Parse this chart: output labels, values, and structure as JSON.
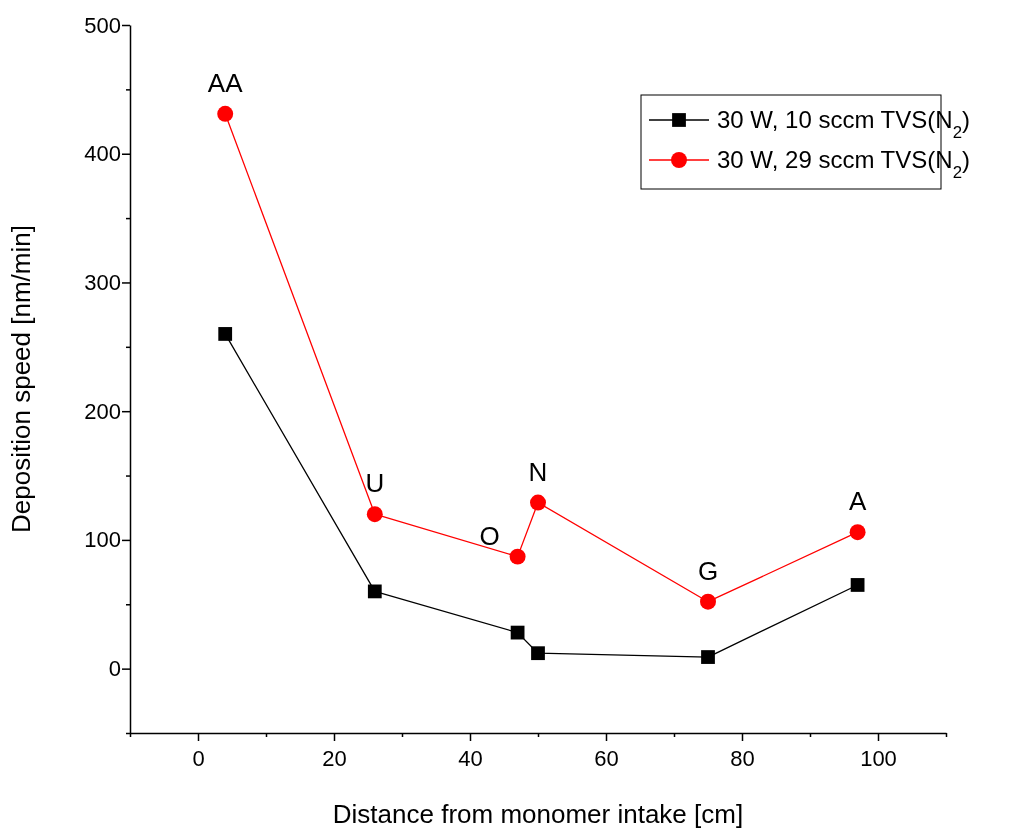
{
  "chart_data": {
    "type": "line",
    "xlabel": "Distance from monomer intake [cm]",
    "ylabel": "Deposition speed [nm/min]",
    "xlim": [
      -10,
      110
    ],
    "xticks": [
      {
        "value": -10,
        "label": null
      },
      0,
      {
        "value": 10,
        "label": null
      },
      20,
      {
        "value": 30,
        "label": null
      },
      40,
      {
        "value": 50,
        "label": null
      },
      60,
      {
        "value": 70,
        "label": null
      },
      80,
      {
        "value": 90,
        "label": null
      },
      100,
      {
        "value": 110,
        "label": null
      }
    ],
    "ylim": [
      -50,
      500
    ],
    "yticks": [
      {
        "value": -50,
        "label": null
      },
      0,
      {
        "value": 50,
        "label": null
      },
      100,
      {
        "value": 150,
        "label": null
      },
      200,
      {
        "value": 250,
        "label": null
      },
      300,
      {
        "value": 350,
        "label": null
      },
      400,
      {
        "value": 450,
        "label": null
      },
      500
    ],
    "x": [
      4,
      26,
      47,
      50,
      75,
      97
    ],
    "series": [
      {
        "name": "30 W, 10 sccm TVS(N$_{2}$)",
        "color": "#000000",
        "marker": "square",
        "values": [
          260,
          60,
          28,
          12,
          9,
          65
        ]
      },
      {
        "name": "30 W, 29 sccm TVS(N$_{2}$)",
        "color": "#ff0000",
        "marker": "circle",
        "values": [
          431,
          120,
          87,
          129,
          52,
          106
        ]
      }
    ],
    "annotations": [
      {
        "text": "AA",
        "x": 4,
        "y": 431
      },
      {
        "text": "U",
        "x": 26,
        "y": 120
      },
      {
        "text": "O",
        "x": 47,
        "y": 87
      },
      {
        "text": "N",
        "x": 50,
        "y": 129
      },
      {
        "text": "G",
        "x": 75,
        "y": 52
      },
      {
        "text": "A",
        "x": 97,
        "y": 106
      }
    ],
    "legend": "top right",
    "grid": false,
    "line_style": "solid"
  }
}
